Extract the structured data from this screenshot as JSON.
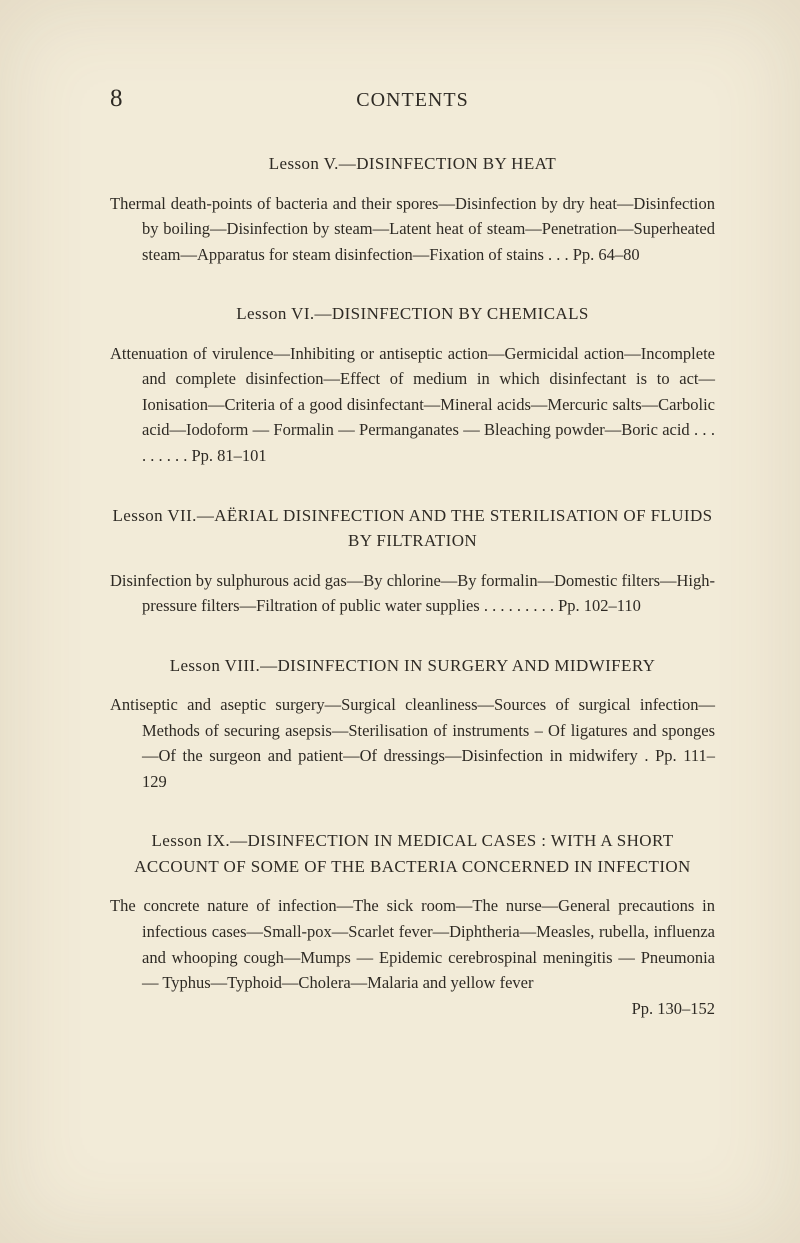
{
  "page": {
    "number": "8",
    "heading": "CONTENTS"
  },
  "lessons": [
    {
      "title": "Lesson V.—DISINFECTION BY HEAT",
      "body": "Thermal death-points of bacteria and their spores—Disinfection by dry heat—Disinfection by boiling—Disinfection by steam—Latent heat of steam—Penetration—Superheated steam—Apparatus for steam disinfection—Fixation of stains    .    .    .   Pp. 64–80"
    },
    {
      "title": "Lesson VI.—DISINFECTION BY CHEMICALS",
      "body": "Attenuation of virulence—Inhibiting or antiseptic action—Germicidal action—Incomplete and complete disinfection—Effect of medium in which disinfectant is to act—Ionisation—Criteria of a good disinfectant—Mineral acids—Mercuric salts—Carbolic acid—Iodoform — Formalin — Permanganates — Bleaching powder—Boric acid  .   .    .    .    .    .    .    .    .   Pp. 81–101"
    },
    {
      "title": "Lesson VII.—AËRIAL DISINFECTION AND THE STERILISA­TION OF FLUIDS BY FILTRATION",
      "body": "Disinfection by sulphurous acid gas—By chlorine—By formalin—Domestic filters—High-pressure filters—Filtration of public water supplies   .    .    .    .    .    .    .    .    .   Pp. 102–110"
    },
    {
      "title": "Lesson VIII.—DISINFECTION IN SURGERY AND MID­WIFERY",
      "body": "Antiseptic and aseptic surgery—Surgical cleanliness—Sources of surgical infection—Methods of securing asepsis—Sterilisation of instruments – Of ligatures and sponges—Of the surgeon and patient—Of dressings—Disinfection in midwifery  .   Pp. 111–129"
    },
    {
      "title": "Lesson IX.—DISINFECTION IN MEDICAL CASES : WITH A SHORT ACCOUNT OF SOME OF THE BACTERIA CON­CERNED IN INFECTION",
      "body": "The concrete nature of infection—The sick room—The nurse—General precautions in infectious cases—Small-pox—Scarlet fever—Diphtheria—Measles, rubella, influenza and whooping cough—Mumps — Epidemic cerebrospinal meningitis — Pneumonia — Typhus—Typhoid—Cholera—Malaria and yellow fever",
      "pp_tail": "Pp. 130–152"
    }
  ]
}
